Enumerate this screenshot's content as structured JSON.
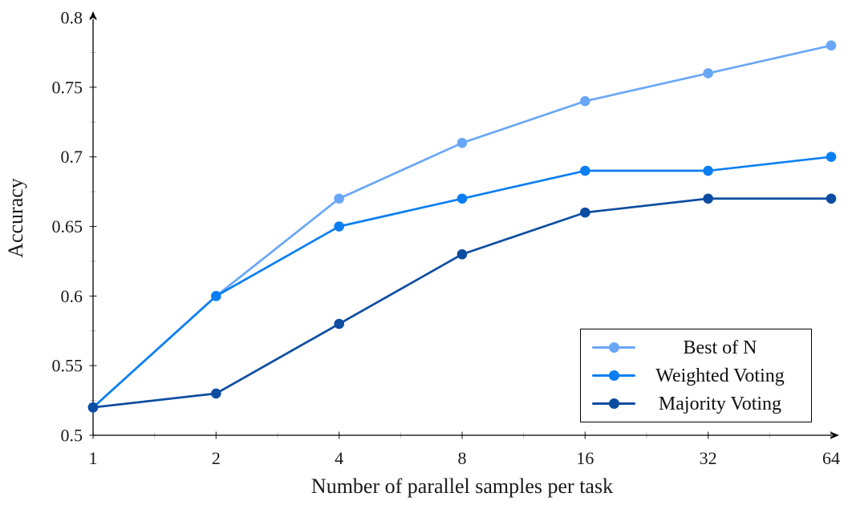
{
  "chart_data": {
    "type": "line",
    "x": [
      1,
      2,
      4,
      8,
      16,
      32,
      64
    ],
    "x_scale": "log2",
    "x_tick_labels": [
      "1",
      "2",
      "4",
      "8",
      "16",
      "32",
      "64"
    ],
    "y_ticks": [
      0.5,
      0.55,
      0.6,
      0.65,
      0.7,
      0.75,
      0.8
    ],
    "y_tick_labels": [
      "0.5",
      "0.55",
      "0.6",
      "0.65",
      "0.7",
      "0.75",
      "0.8"
    ],
    "ylim": [
      0.5,
      0.8
    ],
    "xlabel": "Number of parallel samples per task",
    "ylabel": "Accuracy",
    "grid": false,
    "legend_position": "bottom-right",
    "series": [
      {
        "name": "Best of N",
        "color": "#69a7f6",
        "values": [
          0.52,
          0.6,
          0.67,
          0.71,
          0.74,
          0.76,
          0.78
        ]
      },
      {
        "name": "Weighted Voting",
        "color": "#0b7ff2",
        "values": [
          0.52,
          0.6,
          0.65,
          0.67,
          0.69,
          0.69,
          0.7
        ]
      },
      {
        "name": "Majority Voting",
        "color": "#0d4da1",
        "values": [
          0.52,
          0.53,
          0.58,
          0.63,
          0.66,
          0.67,
          0.67
        ]
      }
    ],
    "colors": {
      "axis": "#000000",
      "major_tick": "#3a3a3a",
      "minor_tick": "#bcc3cc",
      "label_text": "#1a1a1a",
      "background": "#ffffff"
    }
  }
}
